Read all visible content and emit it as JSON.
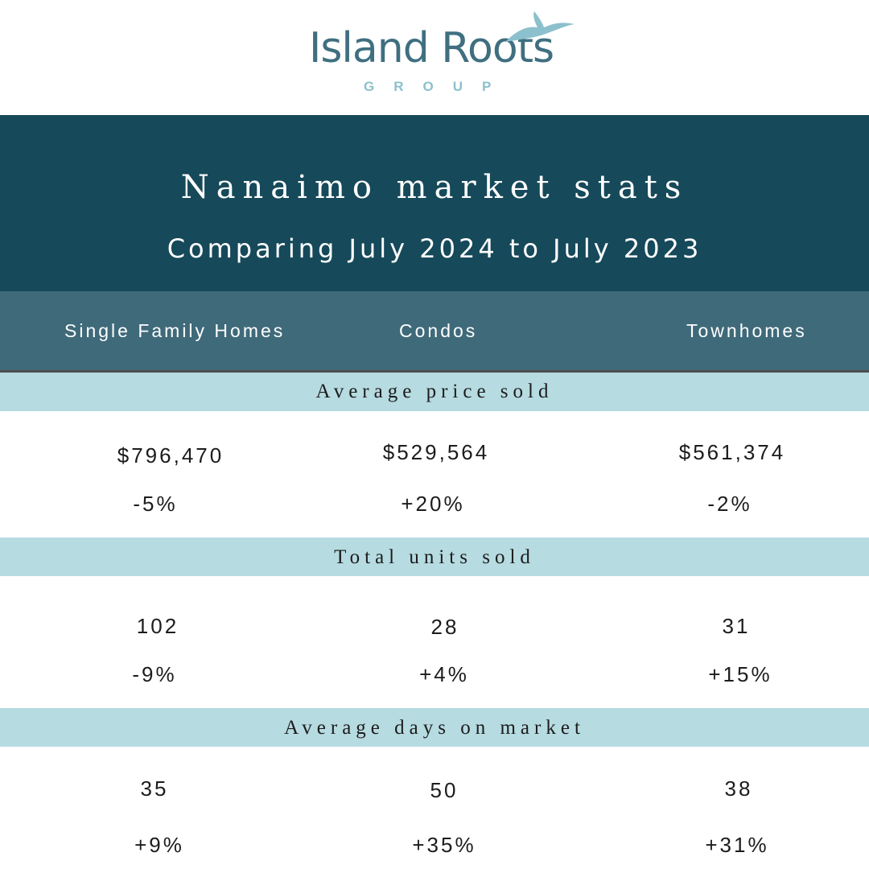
{
  "brand": {
    "name": "Island Roots",
    "sub": "GROUP",
    "colors": {
      "teal_dark": "#16495a",
      "teal_mid": "#3f6a7a",
      "band": "#b6dbe1",
      "logo": "#3f6f80",
      "logo_sub": "#8cc0cd"
    },
    "icon": "bird-icon"
  },
  "banner": {
    "title": "Nanaimo market stats",
    "subtitle": "Comparing July 2024 to July 2023"
  },
  "columns": [
    "Single Family Homes",
    "Condos",
    "Townhomes"
  ],
  "sections": [
    {
      "label": "Average price sold",
      "values": [
        "$796,470",
        "$529,564",
        "$561,374"
      ],
      "changes": [
        "-5%",
        "+20%",
        "-2%"
      ]
    },
    {
      "label": "Total units sold",
      "values": [
        "102",
        "28",
        "31"
      ],
      "changes": [
        "-9%",
        "+4%",
        "+15%"
      ]
    },
    {
      "label": "Average days on market",
      "values": [
        "35",
        "50",
        "38"
      ],
      "changes": [
        "+9%",
        "+35%",
        "+31%"
      ]
    }
  ]
}
